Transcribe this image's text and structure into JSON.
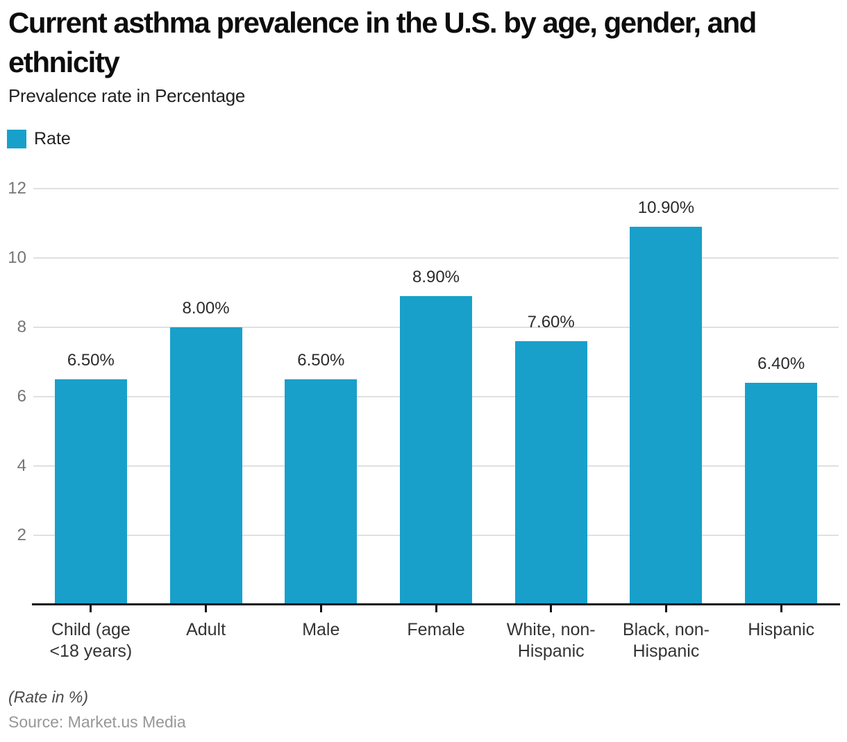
{
  "header": {
    "title": "Current asthma prevalence in the U.S. by age, gender, and ethnicity",
    "subtitle": "Prevalence rate in Percentage"
  },
  "legend": {
    "label": "Rate",
    "color": "#18A0CB"
  },
  "chart_data": {
    "type": "bar",
    "title": "Current asthma prevalence in the U.S. by age, gender, and ethnicity",
    "subtitle": "Prevalence rate in Percentage",
    "categories": [
      "Child (age <18 years)",
      "Adult",
      "Male",
      "Female",
      "White, non-Hispanic",
      "Black, non-Hispanic",
      "Hispanic"
    ],
    "series": [
      {
        "name": "Rate",
        "values": [
          6.5,
          8.0,
          6.5,
          8.9,
          7.6,
          10.9,
          6.4
        ]
      }
    ],
    "value_labels": [
      "6.50%",
      "8.00%",
      "6.50%",
      "8.90%",
      "7.60%",
      "10.90%",
      "6.40%"
    ],
    "bar_color": "#18A0CB",
    "grid_color": "#E0E0E0",
    "axis_color": "#111111",
    "y_ticks": [
      2,
      4,
      6,
      8,
      10,
      12
    ],
    "ylim": [
      0,
      12.6
    ],
    "grid": true,
    "legend_position": "top-left",
    "xlabel": "",
    "ylabel": ""
  },
  "footer": {
    "note": "(Rate in %)",
    "source": "Source: Market.us Media"
  }
}
